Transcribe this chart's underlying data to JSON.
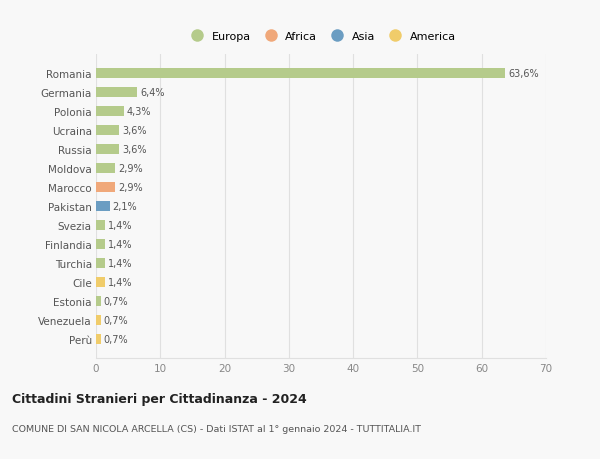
{
  "countries": [
    "Romania",
    "Germania",
    "Polonia",
    "Ucraina",
    "Russia",
    "Moldova",
    "Marocco",
    "Pakistan",
    "Svezia",
    "Finlandia",
    "Turchia",
    "Cile",
    "Estonia",
    "Venezuela",
    "Perù"
  ],
  "values": [
    63.6,
    6.4,
    4.3,
    3.6,
    3.6,
    2.9,
    2.9,
    2.1,
    1.4,
    1.4,
    1.4,
    1.4,
    0.7,
    0.7,
    0.7
  ],
  "labels": [
    "63,6%",
    "6,4%",
    "4,3%",
    "3,6%",
    "3,6%",
    "2,9%",
    "2,9%",
    "2,1%",
    "1,4%",
    "1,4%",
    "1,4%",
    "1,4%",
    "0,7%",
    "0,7%",
    "0,7%"
  ],
  "colors": [
    "#b5cb8b",
    "#b5cb8b",
    "#b5cb8b",
    "#b5cb8b",
    "#b5cb8b",
    "#b5cb8b",
    "#f0a87a",
    "#6b9dc2",
    "#b5cb8b",
    "#b5cb8b",
    "#b5cb8b",
    "#f0cc6a",
    "#b5cb8b",
    "#f0cc6a",
    "#f0cc6a"
  ],
  "legend_labels": [
    "Europa",
    "Africa",
    "Asia",
    "America"
  ],
  "legend_colors": [
    "#b5cb8b",
    "#f0a87a",
    "#6b9dc2",
    "#f0cc6a"
  ],
  "title": "Cittadini Stranieri per Cittadinanza - 2024",
  "subtitle": "COMUNE DI SAN NICOLA ARCELLA (CS) - Dati ISTAT al 1° gennaio 2024 - TUTTITALIA.IT",
  "xlim": [
    0,
    70
  ],
  "xticks": [
    0,
    10,
    20,
    30,
    40,
    50,
    60,
    70
  ],
  "bg_color": "#f8f8f8",
  "grid_color": "#e0e0e0",
  "bar_alpha": 1.0,
  "bar_height": 0.55
}
